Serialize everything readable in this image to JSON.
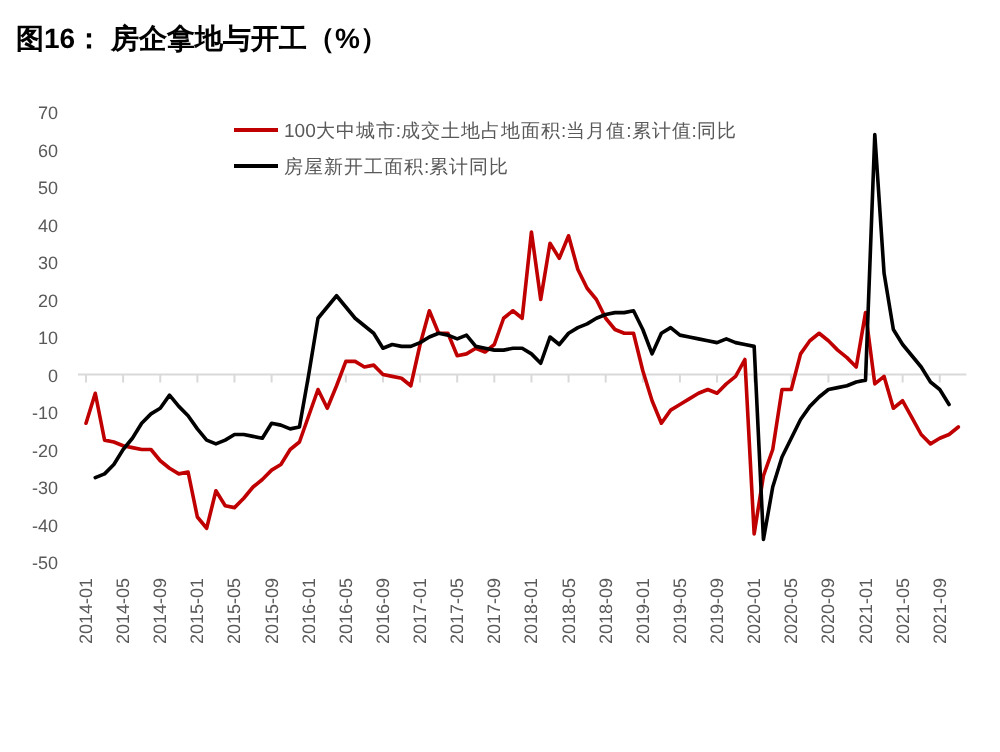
{
  "chart_data": {
    "type": "line",
    "title": "图16：  房企拿地与开工（%）",
    "categories": [
      "2014-01",
      null,
      null,
      null,
      "2014-05",
      null,
      null,
      null,
      "2014-09",
      null,
      null,
      null,
      "2015-01",
      null,
      null,
      null,
      "2015-05",
      null,
      null,
      null,
      "2015-09",
      null,
      null,
      null,
      "2016-01",
      null,
      null,
      null,
      "2016-05",
      null,
      null,
      null,
      "2016-09",
      null,
      null,
      null,
      "2017-01",
      null,
      null,
      null,
      "2017-05",
      null,
      null,
      null,
      "2017-09",
      null,
      null,
      null,
      "2018-01",
      null,
      null,
      null,
      "2018-05",
      null,
      null,
      null,
      "2018-09",
      null,
      null,
      null,
      "2019-01",
      null,
      null,
      null,
      "2019-05",
      null,
      null,
      null,
      "2019-09",
      null,
      null,
      null,
      "2020-01",
      null,
      null,
      null,
      "2020-05",
      null,
      null,
      null,
      "2020-09",
      null,
      null,
      null,
      "2021-01",
      null,
      null,
      null,
      "2021-05",
      null,
      null,
      null,
      "2021-09",
      null,
      null
    ],
    "series": [
      {
        "name": "100大中城市:成交土地占地面积:当月值:累计值:同比",
        "color": "#c00000",
        "values": [
          -13,
          -5,
          -17.5,
          -18,
          -19,
          -19.5,
          -20,
          -20,
          -23,
          -25,
          -26.5,
          -26,
          -38,
          -41,
          -31,
          -35,
          -35.5,
          -33,
          -30,
          -28,
          -25.5,
          -24,
          -20,
          -18,
          -11,
          -4,
          -9,
          -3,
          3.5,
          3.5,
          2,
          2.5,
          0,
          -0.5,
          -1,
          -3,
          8,
          17,
          11,
          11,
          5,
          5.5,
          7,
          6,
          8,
          15,
          17,
          15,
          38,
          20,
          35,
          31,
          37,
          28,
          23,
          20,
          15,
          12,
          11,
          11,
          1,
          -7,
          -13,
          -9.5,
          -8,
          -6.5,
          -5,
          -4,
          -5,
          -2.5,
          -0.5,
          4,
          -42.5,
          -27,
          -20,
          -4,
          -4,
          5.5,
          9,
          11,
          9,
          6.5,
          4.5,
          2,
          16.5,
          -2.5,
          -0.5,
          -9,
          -7,
          -11.5,
          -16,
          -18.5,
          -17,
          -16,
          -14
        ]
      },
      {
        "name": "房屋新开工面积:累计同比",
        "color": "#000000",
        "values": [
          null,
          -27.5,
          -26.5,
          -24,
          -20,
          -17,
          -13,
          -10.5,
          -9,
          -5.5,
          -8.5,
          -11,
          -14.5,
          -17.5,
          -18.5,
          -17.5,
          -16,
          -16,
          -16.5,
          -17,
          -13,
          -13.5,
          -14.5,
          -14,
          0,
          15,
          18,
          21,
          18,
          15,
          13,
          11,
          7,
          8,
          7.5,
          7.5,
          8.5,
          10,
          11,
          10.5,
          9.5,
          10.5,
          7.5,
          7,
          6.5,
          6.5,
          7,
          7,
          5.5,
          3,
          10,
          8,
          11,
          12.5,
          13.5,
          15,
          16,
          16.5,
          16.5,
          17,
          12,
          5.5,
          11,
          12.5,
          10.5,
          10,
          9.5,
          9,
          8.5,
          9.5,
          8.5,
          8,
          7.5,
          -44,
          -30,
          -22,
          -17,
          -12,
          -8.5,
          -6,
          -4,
          -3.5,
          -3,
          -2,
          -1.5,
          64,
          27,
          12,
          8,
          5,
          2,
          -2,
          -4,
          -8,
          null
        ]
      }
    ],
    "ylim": [
      -50,
      70
    ],
    "yticks": [
      -50,
      -40,
      -30,
      -20,
      -10,
      0,
      10,
      20,
      30,
      40,
      50,
      60,
      70
    ],
    "legend": "top right"
  }
}
